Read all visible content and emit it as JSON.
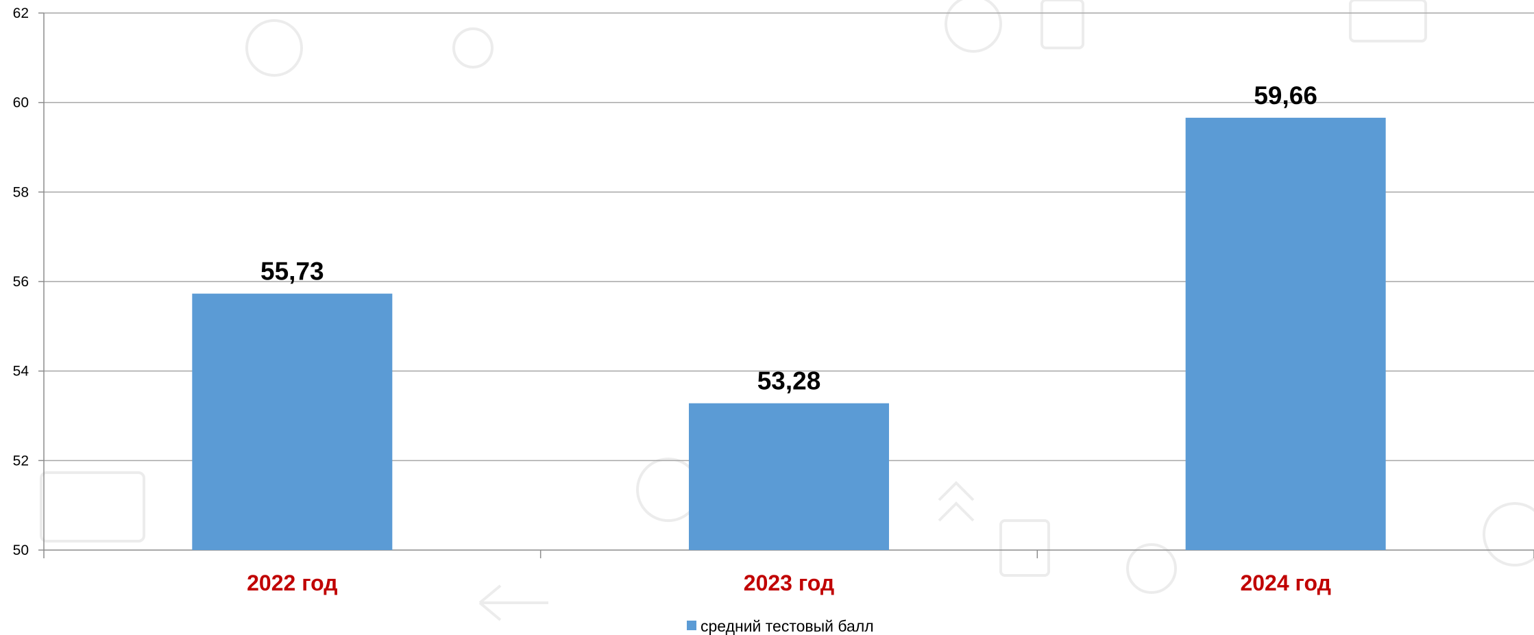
{
  "chart_data": {
    "type": "bar",
    "categories": [
      "2022 год",
      "2023 год",
      "2024 год"
    ],
    "series": [
      {
        "name": "средний тестовый балл",
        "values": [
          55.73,
          53.28,
          59.66
        ]
      }
    ],
    "data_labels": [
      "55,73",
      "53,28",
      "59,66"
    ],
    "title": "",
    "xlabel": "",
    "ylabel": "",
    "ylim": [
      50,
      62
    ],
    "yticks": [
      50,
      52,
      54,
      56,
      58,
      60,
      62
    ],
    "grid": true,
    "legend_position": "bottom-center",
    "colors": {
      "bar": "#5b9bd5",
      "category_label": "#c00000",
      "grid": "#a6a6a6",
      "axis": "#8c8c8c"
    }
  }
}
